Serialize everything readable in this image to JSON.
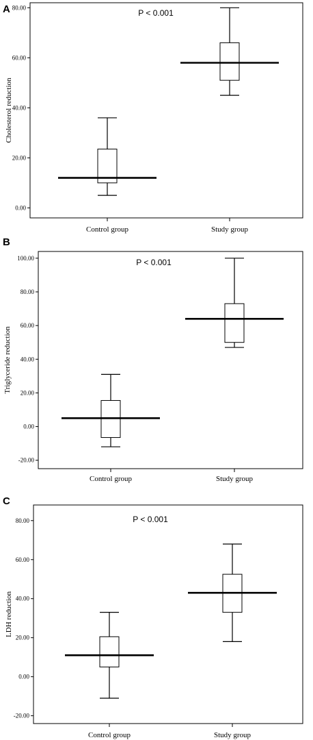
{
  "chart_data": [
    {
      "type": "box",
      "panel_label": "A",
      "annotation": "P < 0.001",
      "xlabel": "",
      "ylabel": "Cholesterol reduction",
      "ylim": [
        -4,
        82
      ],
      "yticks": [
        "0.00",
        "20.00",
        "40.00",
        "60.00",
        "80.00"
      ],
      "ytick_values": [
        0,
        20,
        40,
        60,
        80
      ],
      "categories": [
        "Control group",
        "Study group"
      ],
      "boxes": [
        {
          "whisker_low": 5,
          "q1": 10,
          "median": 12,
          "q3": 23.5,
          "whisker_high": 36
        },
        {
          "whisker_low": 45,
          "q1": 51,
          "median": 58,
          "q3": 66,
          "whisker_high": 80
        }
      ]
    },
    {
      "type": "box",
      "panel_label": "B",
      "annotation": "P < 0.001",
      "xlabel": "",
      "ylabel": "Triglyceride reduction",
      "ylim": [
        -25,
        104
      ],
      "yticks": [
        "-20.00",
        "0.00",
        "20.00",
        "40.00",
        "60.00",
        "80.00",
        "100.00"
      ],
      "ytick_values": [
        -20,
        0,
        20,
        40,
        60,
        80,
        100
      ],
      "categories": [
        "Control group",
        "Study group"
      ],
      "boxes": [
        {
          "whisker_low": -12,
          "q1": -6.5,
          "median": 5,
          "q3": 15.5,
          "whisker_high": 31
        },
        {
          "whisker_low": 47,
          "q1": 50,
          "median": 64,
          "q3": 73,
          "whisker_high": 100
        }
      ]
    },
    {
      "type": "box",
      "panel_label": "C",
      "annotation": "P < 0.001",
      "xlabel": "",
      "ylabel": "LDH reduction",
      "ylim": [
        -24,
        88
      ],
      "yticks": [
        "-20.00",
        "0.00",
        "20.00",
        "40.00",
        "60.00",
        "80.00"
      ],
      "ytick_values": [
        -20,
        0,
        20,
        40,
        60,
        80
      ],
      "categories": [
        "Control group",
        "Study group"
      ],
      "boxes": [
        {
          "whisker_low": -11,
          "q1": 5,
          "median": 11,
          "q3": 20.5,
          "whisker_high": 33
        },
        {
          "whisker_low": 18,
          "q1": 33,
          "median": 43,
          "q3": 52.5,
          "whisker_high": 68
        }
      ]
    }
  ]
}
